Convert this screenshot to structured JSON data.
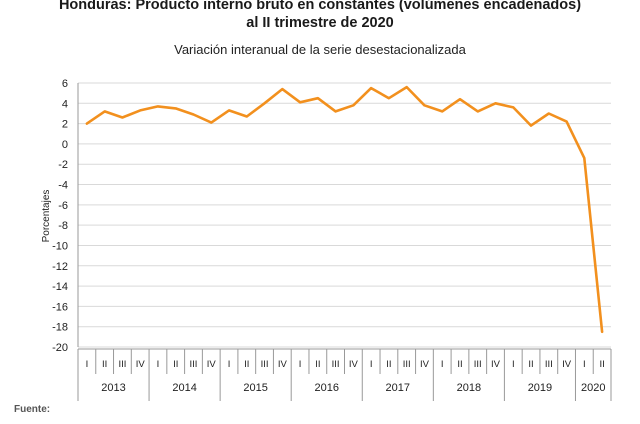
{
  "header": {
    "title_line1": "Honduras: Producto interno bruto en constantes (volúmenes encadenados)",
    "title_line2": "al II trimestre de 2020",
    "subtitle": "Variación interanual de la serie desestacionalizada"
  },
  "footer": {
    "source_label": "Fuente:"
  },
  "colors": {
    "line": "#F2901E",
    "axis": "#999999",
    "grid": "#d9d9d9",
    "text": "#222222"
  },
  "chart_data": {
    "type": "line",
    "ylabel": "Porcentajes",
    "ylim": [
      -20,
      6
    ],
    "yticks": [
      6,
      4,
      2,
      0,
      -2,
      -4,
      -6,
      -8,
      -10,
      -12,
      -14,
      -16,
      -18,
      -20
    ],
    "grid": true,
    "quarter_labels": [
      "I",
      "II",
      "III",
      "IV"
    ],
    "years": [
      {
        "label": "2013",
        "quarters": 4
      },
      {
        "label": "2014",
        "quarters": 4
      },
      {
        "label": "2015",
        "quarters": 4
      },
      {
        "label": "2016",
        "quarters": 4
      },
      {
        "label": "2017",
        "quarters": 4
      },
      {
        "label": "2018",
        "quarters": 4
      },
      {
        "label": "2019",
        "quarters": 4
      },
      {
        "label": "2020",
        "quarters": 2
      }
    ],
    "series": [
      {
        "values": [
          2.0,
          3.2,
          2.6,
          3.3,
          3.7,
          3.5,
          2.9,
          2.1,
          3.3,
          2.7,
          4.0,
          5.4,
          4.1,
          4.5,
          3.2,
          3.8,
          5.5,
          4.5,
          5.6,
          3.8,
          3.2,
          4.4,
          3.2,
          4.0,
          3.6,
          1.8,
          3.0,
          2.2,
          -1.4,
          -18.5
        ]
      }
    ]
  }
}
